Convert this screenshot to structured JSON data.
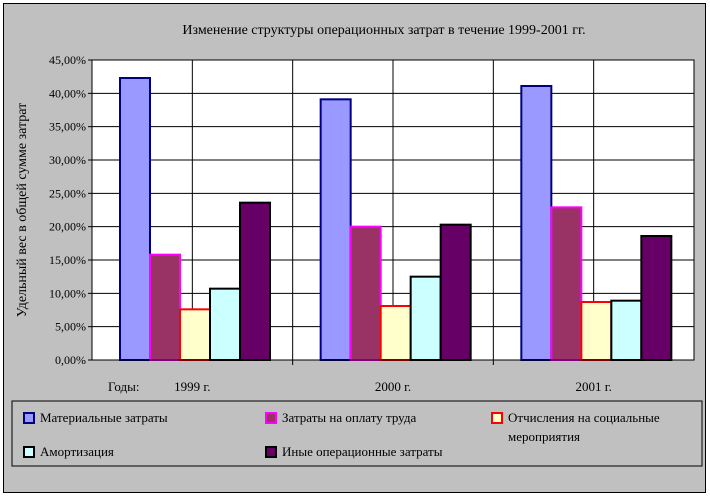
{
  "chart_data": {
    "type": "bar",
    "title": "Изменение структуры операционных затрат в течение 1999-2001 гг.",
    "ylabel": "Удельный вес в общей сумме затрат",
    "xlabel": "Годы:",
    "categories": [
      "1999 г.",
      "2000 г.",
      "2001 г."
    ],
    "ylim": [
      0,
      45
    ],
    "yticks": [
      "0,00%",
      "5,00%",
      "10,00%",
      "15,00%",
      "20,00%",
      "25,00%",
      "30,00%",
      "35,00%",
      "40,00%",
      "45,00%"
    ],
    "grid": true,
    "legend_position": "bottom",
    "series": [
      {
        "name": "Материальные затраты",
        "values": [
          42.3,
          39.1,
          41.1
        ],
        "color": "#9999ff",
        "border": "#000080"
      },
      {
        "name": "Затраты на оплату труда",
        "values": [
          15.8,
          20.0,
          22.9
        ],
        "color": "#993366",
        "border": "#ff00ff"
      },
      {
        "name": "Отчисления на социальные мероприятия",
        "values": [
          7.6,
          8.1,
          8.7
        ],
        "color": "#ffffcc",
        "border": "#ff0000"
      },
      {
        "name": "Амортизация",
        "values": [
          10.7,
          12.5,
          8.9
        ],
        "color": "#ccffff",
        "border": "#000000"
      },
      {
        "name": "Иные операционные затраты",
        "values": [
          23.6,
          20.3,
          18.6
        ],
        "color": "#660066",
        "border": "#000000"
      }
    ]
  }
}
